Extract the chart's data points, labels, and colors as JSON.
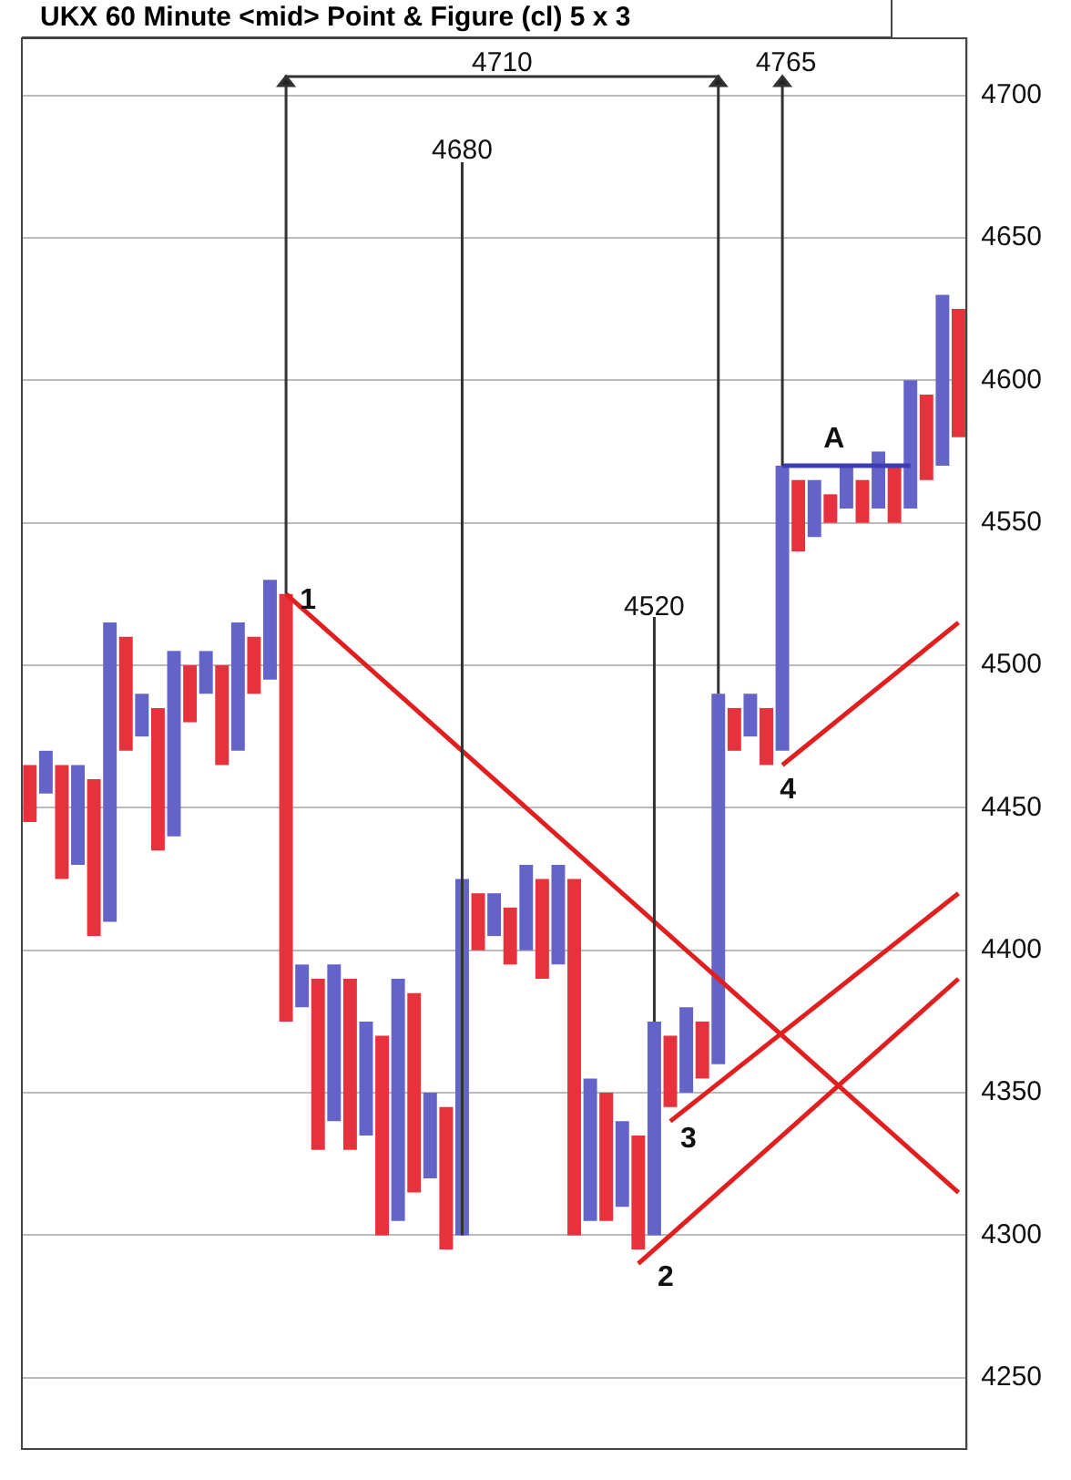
{
  "chart_data": {
    "type": "bar",
    "title": "UKX 60 Minute <mid> Point & Figure (cl) 5 x 3",
    "categories": [
      null,
      null,
      null,
      null,
      null,
      null,
      null,
      null,
      null,
      null,
      null,
      null,
      null,
      null,
      null,
      null,
      null,
      null,
      null,
      null,
      null,
      null,
      null,
      null,
      null,
      null,
      null,
      null,
      null,
      null,
      null,
      null,
      null,
      null,
      null,
      null,
      null,
      null,
      null,
      null,
      null,
      null,
      null,
      null,
      null,
      null,
      null,
      null,
      null,
      null,
      null,
      null,
      null,
      null,
      null,
      null,
      null,
      null,
      null
    ],
    "ylim": [
      4225,
      4720
    ],
    "yticks": [
      4250,
      4300,
      4350,
      4400,
      4450,
      4500,
      4550,
      4600,
      4650,
      4700
    ],
    "grid": "y",
    "tick_labels": "y",
    "series": [
      {
        "base": [
          4445,
          4455,
          4425,
          4430,
          4405,
          4410,
          4470,
          4475,
          4435,
          4440,
          4480,
          4490,
          4465,
          4470,
          4490,
          4495,
          4375,
          4380,
          4330,
          4340,
          4330,
          4335,
          4300,
          4305,
          4315,
          4320,
          4295,
          4300,
          4400,
          4405,
          4395,
          4400,
          4390,
          4395,
          4300,
          4305,
          4305,
          4310,
          4295,
          4300,
          4345,
          4350,
          4355,
          4360,
          4470,
          4475,
          4465,
          4470,
          4540,
          4545,
          4550,
          4555,
          4550,
          4555,
          4550,
          4555,
          4565,
          4570,
          4580
        ],
        "values": [
          20,
          15,
          40,
          35,
          55,
          105,
          40,
          15,
          50,
          65,
          20,
          15,
          35,
          45,
          20,
          35,
          150,
          15,
          60,
          55,
          60,
          40,
          70,
          85,
          70,
          30,
          50,
          125,
          20,
          15,
          20,
          30,
          35,
          35,
          125,
          50,
          45,
          30,
          40,
          75,
          25,
          30,
          20,
          130,
          15,
          15,
          20,
          100,
          25,
          20,
          10,
          15,
          15,
          20,
          20,
          45,
          30,
          60,
          45
        ],
        "colors": [
          "#e6323c",
          "#6464c8",
          "#e6323c",
          "#6464c8",
          "#e6323c",
          "#6464c8",
          "#e6323c",
          "#6464c8",
          "#e6323c",
          "#6464c8",
          "#e6323c",
          "#6464c8",
          "#e6323c",
          "#6464c8",
          "#e6323c",
          "#6464c8",
          "#e6323c",
          "#6464c8",
          "#e6323c",
          "#6464c8",
          "#e6323c",
          "#6464c8",
          "#e6323c",
          "#6464c8",
          "#e6323c",
          "#6464c8",
          "#e6323c",
          "#6464c8",
          "#e6323c",
          "#6464c8",
          "#e6323c",
          "#6464c8",
          "#e6323c",
          "#6464c8",
          "#e6323c",
          "#6464c8",
          "#e6323c",
          "#6464c8",
          "#e6323c",
          "#6464c8",
          "#e6323c",
          "#6464c8",
          "#e6323c",
          "#6464c8",
          "#e6323c",
          "#6464c8",
          "#e6323c",
          "#6464c8",
          "#e6323c",
          "#6464c8",
          "#e6323c",
          "#6464c8",
          "#e6323c",
          "#6464c8",
          "#e6323c",
          "#6464c8",
          "#e6323c",
          "#6464c8",
          "#e6323c"
        ]
      },
      {
        "type": "line",
        "color": "#e02020",
        "values": [
          null,
          null,
          null,
          null,
          null,
          null,
          null,
          null,
          null,
          null,
          null,
          null,
          null,
          null,
          null,
          null,
          4525,
          null,
          null,
          null,
          null,
          null,
          null,
          null,
          null,
          null,
          null,
          null,
          null,
          null,
          null,
          null,
          null,
          null,
          null,
          null,
          null,
          null,
          null,
          null,
          null,
          null,
          null,
          null,
          null,
          null,
          null,
          null,
          null,
          null,
          null,
          null,
          null,
          null,
          null,
          null,
          null,
          null,
          4315
        ]
      },
      {
        "type": "line",
        "color": "#e02020",
        "values": [
          null,
          null,
          null,
          null,
          null,
          null,
          null,
          null,
          null,
          null,
          null,
          null,
          null,
          null,
          null,
          null,
          null,
          null,
          null,
          null,
          null,
          null,
          null,
          null,
          null,
          null,
          null,
          null,
          null,
          null,
          null,
          null,
          null,
          null,
          null,
          null,
          null,
          null,
          4290,
          null,
          null,
          null,
          null,
          null,
          null,
          null,
          null,
          null,
          null,
          null,
          null,
          null,
          null,
          null,
          null,
          null,
          null,
          null,
          4390
        ]
      },
      {
        "type": "line",
        "color": "#e02020",
        "values": [
          null,
          null,
          null,
          null,
          null,
          null,
          null,
          null,
          null,
          null,
          null,
          null,
          null,
          null,
          null,
          null,
          null,
          null,
          null,
          null,
          null,
          null,
          null,
          null,
          null,
          null,
          null,
          null,
          null,
          null,
          null,
          null,
          null,
          null,
          null,
          null,
          null,
          null,
          null,
          null,
          4340,
          null,
          null,
          null,
          null,
          null,
          null,
          null,
          null,
          null,
          null,
          null,
          null,
          null,
          null,
          null,
          null,
          null,
          4420
        ]
      },
      {
        "type": "line",
        "color": "#e02020",
        "values": [
          null,
          null,
          null,
          null,
          null,
          null,
          null,
          null,
          null,
          null,
          null,
          null,
          null,
          null,
          null,
          null,
          null,
          null,
          null,
          null,
          null,
          null,
          null,
          null,
          null,
          null,
          null,
          null,
          null,
          null,
          null,
          null,
          null,
          null,
          null,
          null,
          null,
          null,
          null,
          null,
          null,
          null,
          null,
          null,
          null,
          null,
          null,
          4465,
          null,
          null,
          null,
          null,
          null,
          null,
          null,
          null,
          null,
          null,
          4515
        ]
      },
      {
        "type": "line",
        "color": "#3c3cb4",
        "values": [
          null,
          null,
          null,
          null,
          null,
          null,
          null,
          null,
          null,
          null,
          null,
          null,
          null,
          null,
          null,
          null,
          null,
          null,
          null,
          null,
          null,
          null,
          null,
          null,
          null,
          null,
          null,
          null,
          null,
          null,
          null,
          null,
          null,
          null,
          null,
          null,
          null,
          null,
          null,
          null,
          null,
          null,
          null,
          null,
          null,
          null,
          null,
          4570,
          4570,
          4570,
          4570,
          4570,
          4570,
          4570,
          4570,
          4570,
          null,
          null,
          null
        ]
      }
    ],
    "annotations": [
      "4710",
      "4680",
      "4765",
      "4520",
      "1",
      "2",
      "3",
      "4",
      "A"
    ]
  }
}
